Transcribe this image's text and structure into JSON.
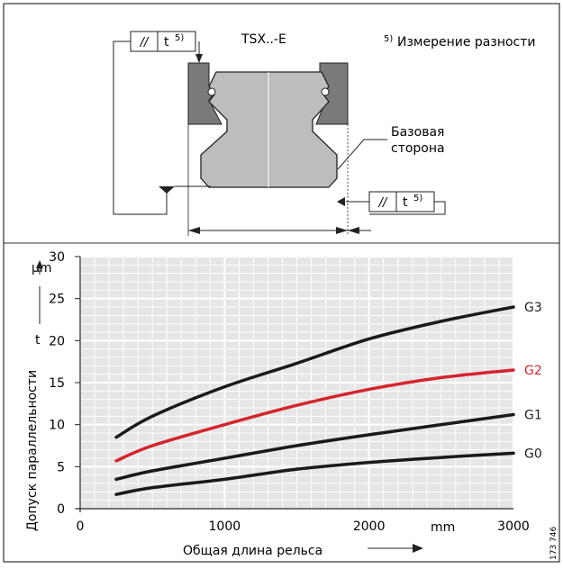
{
  "header": {
    "profile_label": "TSX..-E",
    "footnote_marker": "5)",
    "footnote_text": "Измерение разности",
    "reference_side_line1": "Базовая",
    "reference_side_line2": "сторона",
    "tolerance_box_symbol": "//",
    "tolerance_box_value": "t",
    "tolerance_box_superscript": "5)"
  },
  "chart_data": {
    "type": "line",
    "xlabel": "Общая длина рельса",
    "x_unit": "mm",
    "ylabel": "Допуск параллельности",
    "y_symbol": "t",
    "y_unit": "μm",
    "xlim": [
      0,
      3000
    ],
    "ylim": [
      0,
      30
    ],
    "x_ticks": [
      "0",
      "1000",
      "2000",
      "3000"
    ],
    "y_ticks": [
      "0",
      "5",
      "10",
      "15",
      "20",
      "25",
      "30"
    ],
    "grid": true,
    "series": [
      {
        "name": "G3",
        "color": "#1a1a1a",
        "x": [
          250,
          500,
          1000,
          1500,
          2000,
          2500,
          3000
        ],
        "y": [
          8.5,
          11,
          14.5,
          17.3,
          20.2,
          22.3,
          24
        ]
      },
      {
        "name": "G2",
        "color": "#d4252c",
        "x": [
          250,
          500,
          1000,
          1500,
          2000,
          2500,
          3000
        ],
        "y": [
          5.7,
          7.5,
          10,
          12.3,
          14.2,
          15.6,
          16.5
        ]
      },
      {
        "name": "G1",
        "color": "#1a1a1a",
        "x": [
          250,
          500,
          1000,
          1500,
          2000,
          2500,
          3000
        ],
        "y": [
          3.5,
          4.5,
          6,
          7.5,
          8.8,
          10,
          11.2
        ]
      },
      {
        "name": "G0",
        "color": "#1a1a1a",
        "x": [
          250,
          500,
          1000,
          1500,
          2000,
          2500,
          3000
        ],
        "y": [
          1.7,
          2.5,
          3.5,
          4.7,
          5.5,
          6.1,
          6.6
        ]
      }
    ]
  },
  "side_code": "173 746"
}
